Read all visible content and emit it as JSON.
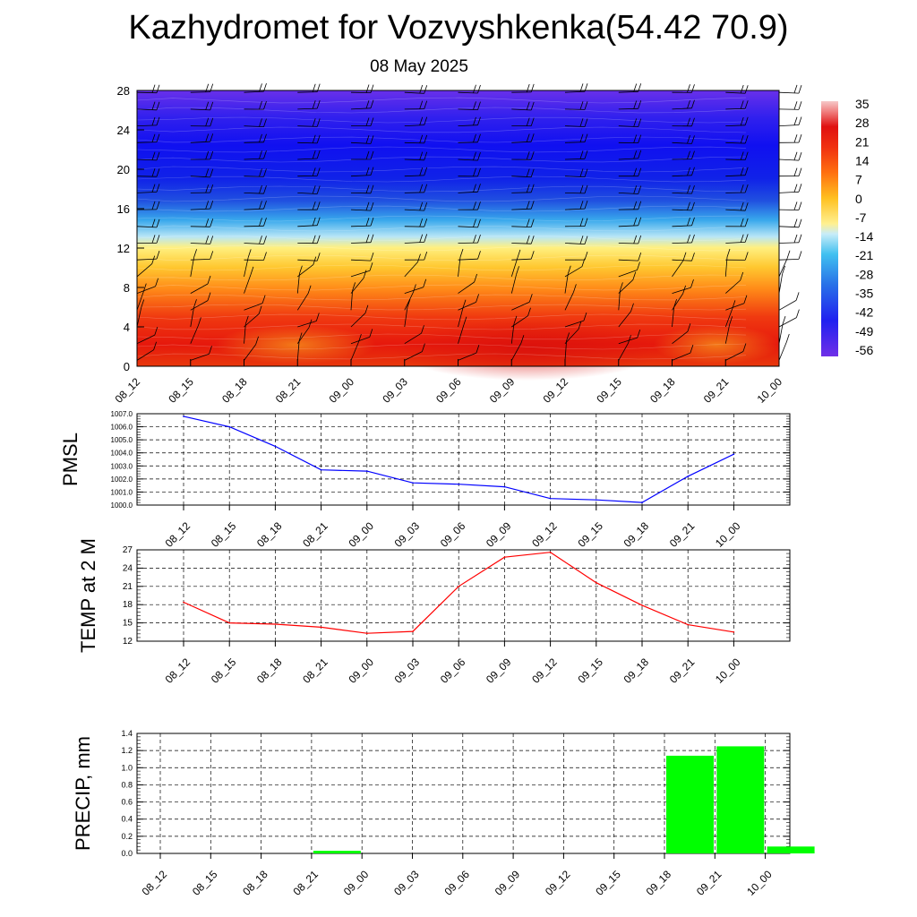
{
  "title": "Kazhydromet for Vozvyshkenka(54.42 70.9)",
  "subtitle": "08 May 2025",
  "time_labels": [
    "08_12",
    "08_15",
    "08_18",
    "08_21",
    "09_00",
    "09_03",
    "09_06",
    "09_09",
    "09_12",
    "09_15",
    "09_18",
    "09_21",
    "10_00"
  ],
  "colors": {
    "pmsl_line": "#0000ff",
    "temp_line": "#ff0000",
    "precip_bar": "#00ff00",
    "grid": "#000000"
  },
  "chart_data": [
    {
      "type": "heatmap",
      "name": "vertical-temperature-cross-section",
      "x": [
        "08_12",
        "08_15",
        "08_18",
        "08_21",
        "09_00",
        "09_03",
        "09_06",
        "09_09",
        "09_12",
        "09_15",
        "09_18",
        "09_21",
        "10_00"
      ],
      "y_ticks": [
        "0",
        "4",
        "8",
        "12",
        "16",
        "20",
        "24",
        "28"
      ],
      "ylim": [
        0,
        28
      ],
      "colorbar_labels": [
        "35",
        "28",
        "21",
        "14",
        "7",
        "0",
        "-7",
        "-14",
        "-21",
        "-28",
        "-35",
        "-42",
        "-49",
        "-56"
      ],
      "colorbar_range": [
        -60,
        38
      ],
      "overlay": "wind barbs"
    },
    {
      "type": "line",
      "ylabel": "PMSL",
      "x": [
        "08_12",
        "08_15",
        "08_18",
        "08_21",
        "09_00",
        "09_03",
        "09_06",
        "09_09",
        "09_12",
        "09_15",
        "09_18",
        "09_21",
        "10_00"
      ],
      "values": [
        1006.8,
        1006.0,
        1004.5,
        1002.7,
        1002.6,
        1001.7,
        1001.6,
        1001.4,
        1000.5,
        1000.4,
        1000.2,
        1002.2,
        1003.9
      ],
      "ylim": [
        1000.0,
        1007.0
      ],
      "y_ticks": [
        "1000.0",
        "1001.0",
        "1002.0",
        "1003.0",
        "1004.0",
        "1005.0",
        "1006.0",
        "1007.0"
      ],
      "grid": true
    },
    {
      "type": "line",
      "ylabel": "TEMP at 2 M",
      "x": [
        "08_12",
        "08_15",
        "08_18",
        "08_21",
        "09_00",
        "09_03",
        "09_06",
        "09_09",
        "09_12",
        "09_15",
        "09_18",
        "09_21",
        "10_00"
      ],
      "values": [
        18.4,
        15.0,
        14.8,
        14.3,
        13.3,
        13.6,
        21.0,
        25.8,
        26.6,
        21.6,
        17.9,
        14.7,
        13.5
      ],
      "ylim": [
        12,
        27
      ],
      "y_ticks": [
        "12",
        "15",
        "18",
        "21",
        "24",
        "27"
      ],
      "grid": true
    },
    {
      "type": "bar",
      "ylabel": "PRECIP, mm",
      "categories": [
        "08_12",
        "08_15",
        "08_18",
        "08_21",
        "09_00",
        "09_03",
        "09_06",
        "09_09",
        "09_12",
        "09_15",
        "09_18",
        "09_21",
        "10_00"
      ],
      "values": [
        0,
        0,
        0,
        0.03,
        0,
        0,
        0,
        0,
        0,
        0,
        1.14,
        1.25,
        0.08
      ],
      "ylim": [
        0,
        1.4
      ],
      "y_ticks": [
        "0.0",
        "0.2",
        "0.4",
        "0.6",
        "0.8",
        "1.0",
        "1.2",
        "1.4"
      ],
      "grid": true
    }
  ]
}
